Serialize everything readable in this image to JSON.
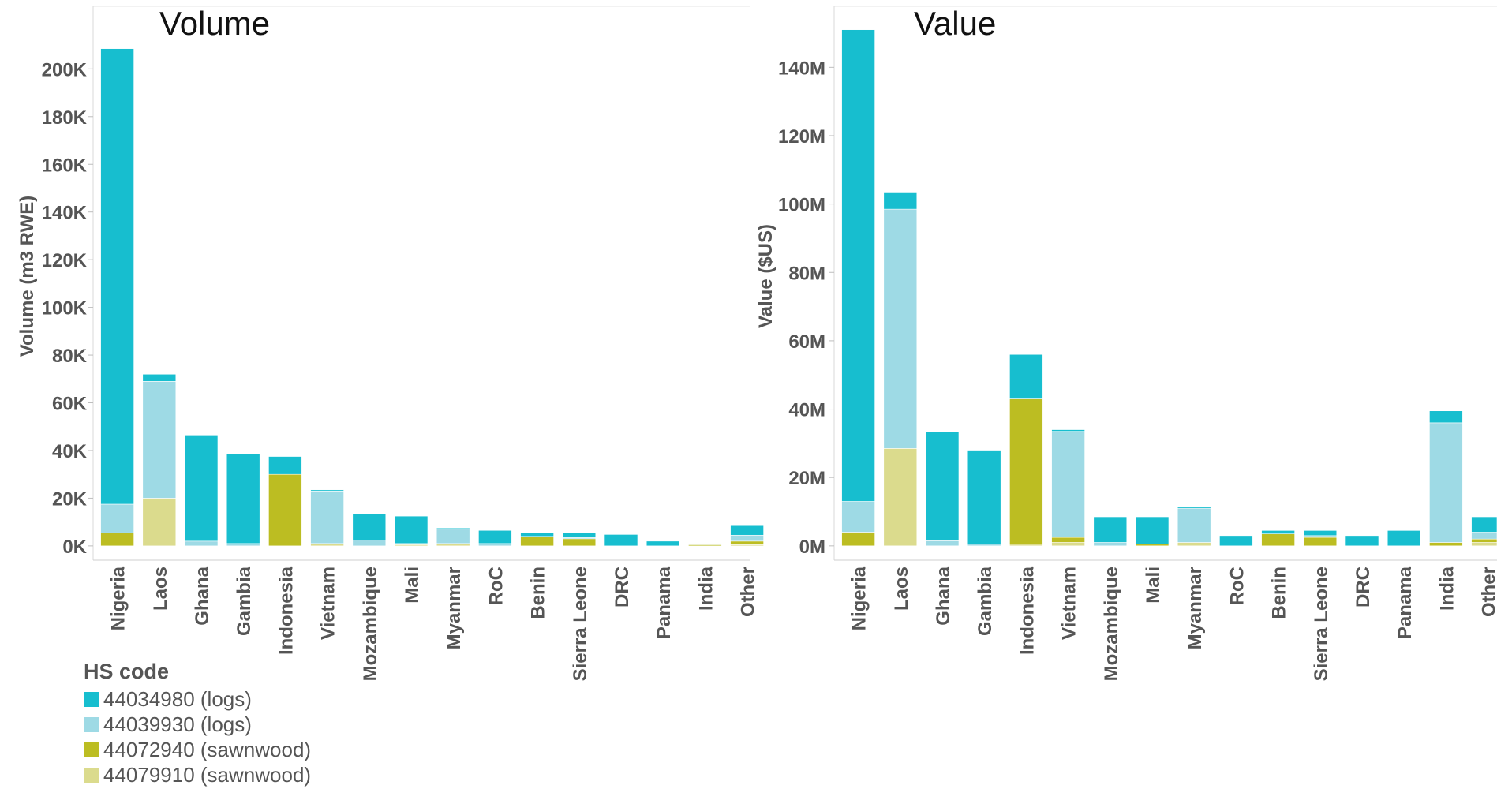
{
  "legend": {
    "title": "HS code",
    "items": [
      {
        "label": "44034980 (logs)",
        "color": "#17becf"
      },
      {
        "label": "44039930 (logs)",
        "color": "#9edae5"
      },
      {
        "label": "44072940 (sawnwood)",
        "color": "#bcbd22"
      },
      {
        "label": "44079910 (sawnwood)",
        "color": "#dbdb8d"
      }
    ]
  },
  "chart_data": [
    {
      "type": "bar",
      "stacked": true,
      "title": "Volume",
      "ylabel": "Volume (m3 RWE)",
      "xlabel": "",
      "ylim": [
        -5000,
        215000
      ],
      "yticks": [
        0,
        20000,
        40000,
        60000,
        80000,
        100000,
        120000,
        140000,
        160000,
        180000,
        200000
      ],
      "ytick_labels": [
        "0K",
        "20K",
        "40K",
        "60K",
        "80K",
        "100K",
        "120K",
        "140K",
        "160K",
        "180K",
        "200K"
      ],
      "categories": [
        "Nigeria",
        "Laos",
        "Ghana",
        "Gambia",
        "Indonesia",
        "Vietnam",
        "Mozambique",
        "Mali",
        "Myanmar",
        "RoC",
        "Benin",
        "Sierra Leone",
        "DRC",
        "Panama",
        "India",
        "Other"
      ],
      "series": [
        {
          "name": "44079910 (sawnwood)",
          "color": "#dbdb8d",
          "values": [
            0,
            20000,
            0,
            0,
            0,
            1000,
            0,
            500,
            1000,
            0,
            0,
            0,
            0,
            0,
            0,
            500
          ]
        },
        {
          "name": "44072940 (sawnwood)",
          "color": "#bcbd22",
          "values": [
            5500,
            0,
            0,
            0,
            30000,
            0,
            0,
            500,
            0,
            0,
            4000,
            3000,
            0,
            0,
            500,
            1500
          ]
        },
        {
          "name": "44039930 (logs)",
          "color": "#9edae5",
          "values": [
            12000,
            49000,
            2000,
            1000,
            0,
            22000,
            2500,
            0,
            6000,
            1000,
            0,
            500,
            0,
            0,
            500,
            2500
          ]
        },
        {
          "name": "44034980 (logs)",
          "color": "#17becf",
          "values": [
            191000,
            3000,
            44500,
            37500,
            7500,
            500,
            11000,
            11500,
            500,
            5500,
            1500,
            2000,
            4800,
            2000,
            0,
            4000
          ]
        }
      ]
    },
    {
      "type": "bar",
      "stacked": true,
      "title": "Value",
      "ylabel": "Value ($US)",
      "xlabel": "",
      "ylim": [
        -3500000,
        150000000
      ],
      "yticks": [
        0,
        20000000,
        40000000,
        60000000,
        80000000,
        100000000,
        120000000,
        140000000
      ],
      "ytick_labels": [
        "0M",
        "20M",
        "40M",
        "60M",
        "80M",
        "100M",
        "120M",
        "140M"
      ],
      "categories": [
        "Nigeria",
        "Laos",
        "Ghana",
        "Gambia",
        "Indonesia",
        "Vietnam",
        "Mozambique",
        "Mali",
        "Myanmar",
        "RoC",
        "Benin",
        "Sierra Leone",
        "DRC",
        "Panama",
        "India",
        "Other"
      ],
      "series": [
        {
          "name": "44079910 (sawnwood)",
          "color": "#dbdb8d",
          "values": [
            0,
            28500000,
            0,
            0,
            500000,
            1000000,
            0,
            0,
            1000000,
            0,
            0,
            0,
            0,
            0,
            0,
            1000000
          ]
        },
        {
          "name": "44072940 (sawnwood)",
          "color": "#bcbd22",
          "values": [
            4000000,
            0,
            0,
            0,
            42500000,
            1500000,
            0,
            500000,
            0,
            0,
            3500000,
            2500000,
            0,
            0,
            1000000,
            1000000
          ]
        },
        {
          "name": "44039930 (logs)",
          "color": "#9edae5",
          "values": [
            9000000,
            70000000,
            1500000,
            500000,
            0,
            31000000,
            1000000,
            0,
            10000000,
            0,
            0,
            500000,
            0,
            0,
            35000000,
            2000000
          ]
        },
        {
          "name": "44034980 (logs)",
          "color": "#17becf",
          "values": [
            138000000,
            5000000,
            32000000,
            27500000,
            13000000,
            500000,
            7500000,
            8000000,
            500000,
            3000000,
            1000000,
            1500000,
            3000000,
            4500000,
            3500000,
            4500000
          ]
        }
      ]
    }
  ]
}
